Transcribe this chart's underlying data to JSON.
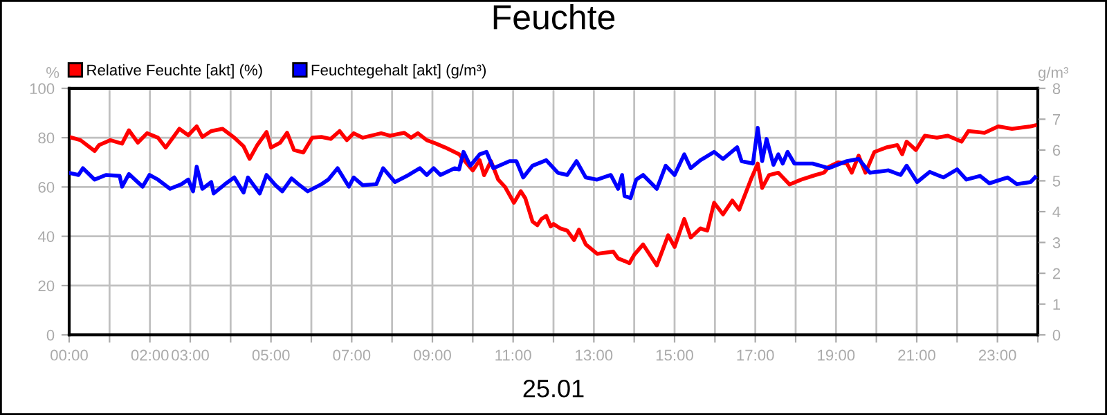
{
  "chart_data": {
    "type": "line",
    "title": "Feuchte",
    "xlabel": "25.01",
    "ylabel": "%",
    "y2label": "g/m³",
    "xlim": [
      0,
      24
    ],
    "xticks": [
      {
        "value": 0,
        "label": "00:00"
      },
      {
        "value": 1,
        "label": null
      },
      {
        "value": 2,
        "label": "02:00"
      },
      {
        "value": 3,
        "label": "03:00"
      },
      {
        "value": 4,
        "label": null
      },
      {
        "value": 5,
        "label": "05:00"
      },
      {
        "value": 6,
        "label": null
      },
      {
        "value": 7,
        "label": "07:00"
      },
      {
        "value": 8,
        "label": null
      },
      {
        "value": 9,
        "label": "09:00"
      },
      {
        "value": 10,
        "label": null
      },
      {
        "value": 11,
        "label": "11:00"
      },
      {
        "value": 12,
        "label": null
      },
      {
        "value": 13,
        "label": "13:00"
      },
      {
        "value": 14,
        "label": null
      },
      {
        "value": 15,
        "label": "15:00"
      },
      {
        "value": 16,
        "label": null
      },
      {
        "value": 17,
        "label": "17:00"
      },
      {
        "value": 18,
        "label": null
      },
      {
        "value": 19,
        "label": "19:00"
      },
      {
        "value": 20,
        "label": null
      },
      {
        "value": 21,
        "label": "21:00"
      },
      {
        "value": 22,
        "label": null
      },
      {
        "value": 23,
        "label": "23:00"
      },
      {
        "value": 24,
        "label": null
      }
    ],
    "ylim": [
      0,
      100
    ],
    "yticks": [
      0,
      20,
      40,
      60,
      80,
      100
    ],
    "y2lim": [
      0,
      8
    ],
    "y2ticks": [
      0,
      1,
      2,
      3,
      4,
      5,
      6,
      7,
      8
    ],
    "grid": true,
    "legend": "top left",
    "marker": "none",
    "line_style": "solid",
    "series": [
      {
        "name": "Relative Feuchte [akt] (%)",
        "color": "#ff0000",
        "x": [
          0,
          0.28,
          0.63,
          0.74,
          1.02,
          1.31,
          1.48,
          1.7,
          1.93,
          2.2,
          2.39,
          2.73,
          2.95,
          3.16,
          3.3,
          3.52,
          3.8,
          4.09,
          4.32,
          4.47,
          4.66,
          4.89,
          5.0,
          5.23,
          5.4,
          5.57,
          5.8,
          6.02,
          6.25,
          6.48,
          6.7,
          6.88,
          7.05,
          7.27,
          7.73,
          7.95,
          8.3,
          8.47,
          8.64,
          8.86,
          9.09,
          9.32,
          9.66,
          10.0,
          10.17,
          10.28,
          10.45,
          10.63,
          10.8,
          11.02,
          11.19,
          11.3,
          11.48,
          11.6,
          11.7,
          11.82,
          11.93,
          12.0,
          12.17,
          12.34,
          12.51,
          12.63,
          12.8,
          13.08,
          13.48,
          13.6,
          13.76,
          13.88,
          14.0,
          14.22,
          14.56,
          14.84,
          15.0,
          15.24,
          15.4,
          15.64,
          15.81,
          15.98,
          16.2,
          16.43,
          16.6,
          16.89,
          17.06,
          17.17,
          17.34,
          17.57,
          17.68,
          17.85,
          18.14,
          18.48,
          18.7,
          18.82,
          19.05,
          19.27,
          19.39,
          19.56,
          19.73,
          19.95,
          20.24,
          20.52,
          20.64,
          20.75,
          20.98,
          21.2,
          21.5,
          21.77,
          22.11,
          22.28,
          22.68,
          23.02,
          23.36,
          23.82,
          23.93
        ],
        "values": [
          80.3,
          79,
          74.6,
          77,
          79,
          77.6,
          83,
          78,
          81.8,
          80,
          76,
          83.6,
          81,
          84.6,
          80.3,
          82.7,
          83.6,
          80,
          76.5,
          71.4,
          77,
          82.3,
          76,
          78,
          82,
          75,
          74,
          80,
          80.3,
          79.5,
          82.7,
          79,
          81.8,
          80,
          81.8,
          80.8,
          82,
          80,
          81.8,
          79,
          77.6,
          76,
          73.3,
          66.7,
          70.9,
          64.8,
          70.5,
          63,
          60,
          53.6,
          58.3,
          55.5,
          46,
          44.5,
          47,
          48.3,
          44,
          45,
          43.2,
          42.3,
          38.5,
          42.7,
          36.7,
          32.9,
          33.8,
          31,
          30,
          29.1,
          32.5,
          36.7,
          28.2,
          40.4,
          35.7,
          47,
          39.5,
          43.2,
          42.3,
          53.6,
          48.9,
          54.5,
          50.8,
          63,
          69.5,
          59.6,
          64.8,
          65.8,
          63.9,
          61,
          63,
          64.8,
          65.8,
          68.2,
          70,
          69.5,
          65.8,
          72.7,
          65.8,
          74.2,
          76,
          77,
          73.3,
          78.4,
          75,
          80.8,
          80,
          80.8,
          78.4,
          82.7,
          82,
          84.6,
          83.6,
          84.6,
          85
        ]
      },
      {
        "name": "Feuchtegehalt [akt] (g/m³)",
        "color": "#0000ff",
        "axis": "y2",
        "x": [
          0,
          0.23,
          0.34,
          0.63,
          0.91,
          1.25,
          1.31,
          1.48,
          1.82,
          1.99,
          2.2,
          2.5,
          2.78,
          2.95,
          3.07,
          3.16,
          3.3,
          3.52,
          3.58,
          3.86,
          4.09,
          4.32,
          4.43,
          4.72,
          4.89,
          5.11,
          5.28,
          5.51,
          5.68,
          5.91,
          6.25,
          6.42,
          6.65,
          6.93,
          7.05,
          7.27,
          7.61,
          7.78,
          8.07,
          8.41,
          8.69,
          8.86,
          9.03,
          9.2,
          9.55,
          9.66,
          9.77,
          9.94,
          10.17,
          10.34,
          10.51,
          10.91,
          11.08,
          11.25,
          11.48,
          11.82,
          12.11,
          12.34,
          12.57,
          12.8,
          13.08,
          13.42,
          13.6,
          13.7,
          13.76,
          13.91,
          14.05,
          14.22,
          14.56,
          14.78,
          15.0,
          15.24,
          15.4,
          15.64,
          15.98,
          16.2,
          16.55,
          16.66,
          16.94,
          17.06,
          17.17,
          17.28,
          17.45,
          17.57,
          17.68,
          17.8,
          17.97,
          18.42,
          18.82,
          19.27,
          19.56,
          19.84,
          20.3,
          20.6,
          20.75,
          21.01,
          21.32,
          21.66,
          22.0,
          22.23,
          22.57,
          22.8,
          23.25,
          23.48,
          23.82,
          23.93
        ],
        "values": [
          5.26,
          5.19,
          5.41,
          5.04,
          5.19,
          5.16,
          4.81,
          5.22,
          4.81,
          5.19,
          5.04,
          4.74,
          4.89,
          5.04,
          4.66,
          5.46,
          4.74,
          4.96,
          4.59,
          4.89,
          5.11,
          4.62,
          5.11,
          4.59,
          5.19,
          4.86,
          4.66,
          5.08,
          4.89,
          4.66,
          4.89,
          5.04,
          5.41,
          4.81,
          5.11,
          4.86,
          4.89,
          5.41,
          4.96,
          5.19,
          5.41,
          5.19,
          5.41,
          5.19,
          5.41,
          5.37,
          5.94,
          5.49,
          5.86,
          5.94,
          5.41,
          5.64,
          5.64,
          5.11,
          5.49,
          5.67,
          5.26,
          5.19,
          5.64,
          5.11,
          5.04,
          5.19,
          4.74,
          5.19,
          4.51,
          4.44,
          5.04,
          5.19,
          4.74,
          5.49,
          5.19,
          5.86,
          5.41,
          5.67,
          5.94,
          5.71,
          6.09,
          5.64,
          5.56,
          6.72,
          5.64,
          6.36,
          5.52,
          5.86,
          5.56,
          5.94,
          5.56,
          5.56,
          5.41,
          5.64,
          5.71,
          5.26,
          5.34,
          5.19,
          5.49,
          4.96,
          5.29,
          5.11,
          5.37,
          5.04,
          5.16,
          4.92,
          5.11,
          4.89,
          4.96,
          5.11
        ]
      }
    ]
  }
}
